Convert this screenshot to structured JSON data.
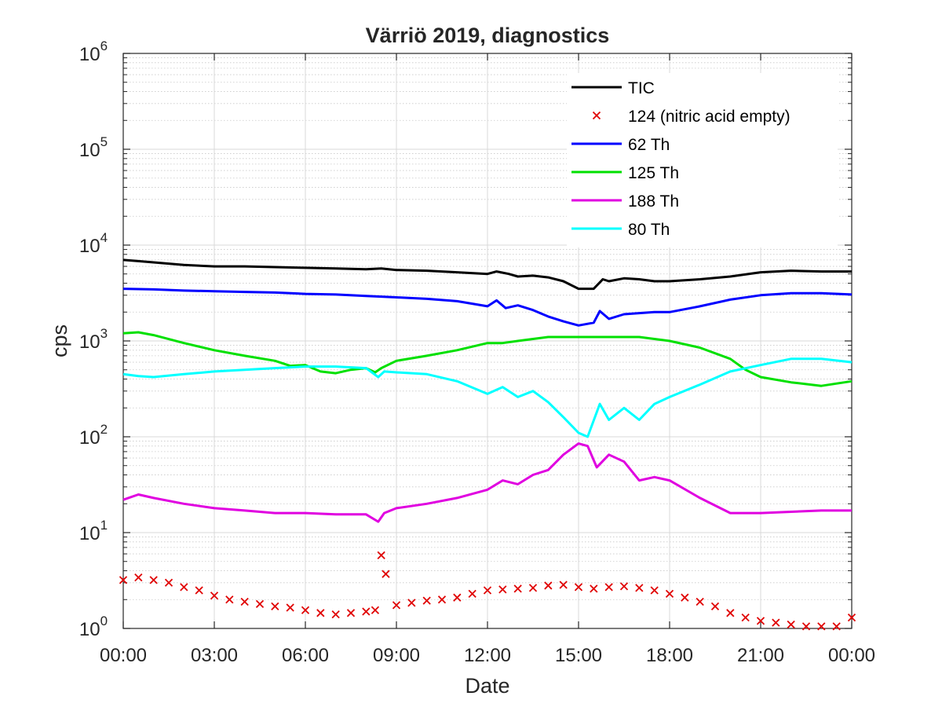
{
  "chart_data": {
    "type": "line",
    "title": "Värriö 2019, diagnostics",
    "xlabel": "Date",
    "ylabel": "cps",
    "x_ticks": [
      "00:00",
      "03:00",
      "06:00",
      "09:00",
      "12:00",
      "15:00",
      "18:00",
      "21:00",
      "00:00"
    ],
    "xlim_hours": [
      0,
      24
    ],
    "y_scale": "log",
    "ylim": [
      1,
      1000000
    ],
    "y_ticks": [
      {
        "base": "10",
        "exp": "0"
      },
      {
        "base": "10",
        "exp": "1"
      },
      {
        "base": "10",
        "exp": "2"
      },
      {
        "base": "10",
        "exp": "3"
      },
      {
        "base": "10",
        "exp": "4"
      },
      {
        "base": "10",
        "exp": "5"
      },
      {
        "base": "10",
        "exp": "6"
      }
    ],
    "grid": true,
    "minor_grid": true,
    "legend_position": "top-right",
    "series": [
      {
        "name": "TIC",
        "style": "line",
        "color": "#000000",
        "x": [
          0,
          0.5,
          1,
          1.5,
          2,
          3,
          4,
          5,
          6,
          7,
          8,
          8.5,
          9,
          10,
          11,
          12,
          12.3,
          12.7,
          13,
          13.5,
          14,
          14.5,
          15,
          15.5,
          15.8,
          16,
          16.5,
          17,
          17.5,
          18,
          19,
          20,
          21,
          22,
          23,
          24
        ],
        "y": [
          7000,
          6800,
          6600,
          6400,
          6200,
          6000,
          6000,
          5900,
          5800,
          5700,
          5600,
          5700,
          5500,
          5400,
          5200,
          5000,
          5300,
          5000,
          4700,
          4800,
          4600,
          4200,
          3500,
          3500,
          4400,
          4200,
          4500,
          4400,
          4200,
          4200,
          4400,
          4700,
          5200,
          5400,
          5300,
          5300
        ]
      },
      {
        "name": "124 (nitric acid empty)",
        "style": "marker",
        "color": "#e00000",
        "x": [
          0,
          0.5,
          1,
          1.5,
          2,
          2.5,
          3,
          3.5,
          4,
          4.5,
          5,
          5.5,
          6,
          6.5,
          7,
          7.5,
          8,
          8.3,
          8.5,
          8.65,
          9,
          9.5,
          10,
          10.5,
          11,
          11.5,
          12,
          12.5,
          13,
          13.5,
          14,
          14.5,
          15,
          15.5,
          16,
          16.5,
          17,
          17.5,
          18,
          18.5,
          19,
          19.5,
          20,
          20.5,
          21,
          21.5,
          22,
          22.5,
          23,
          23.5,
          24
        ],
        "y": [
          3.2,
          3.4,
          3.2,
          3.0,
          2.7,
          2.5,
          2.2,
          2.0,
          1.9,
          1.8,
          1.7,
          1.65,
          1.55,
          1.45,
          1.4,
          1.45,
          1.5,
          1.55,
          5.8,
          3.7,
          1.75,
          1.85,
          1.95,
          2.0,
          2.1,
          2.3,
          2.5,
          2.55,
          2.6,
          2.65,
          2.8,
          2.85,
          2.7,
          2.6,
          2.7,
          2.75,
          2.65,
          2.5,
          2.3,
          2.1,
          1.9,
          1.7,
          1.45,
          1.3,
          1.2,
          1.15,
          1.1,
          1.05,
          1.05,
          1.05,
          1.3
        ]
      },
      {
        "name": "62 Th",
        "style": "line",
        "color": "#0000ff",
        "x": [
          0,
          1,
          2,
          3,
          4,
          5,
          6,
          7,
          8,
          9,
          10,
          11,
          12,
          12.3,
          12.6,
          13,
          13.5,
          14,
          14.5,
          15,
          15.5,
          15.7,
          16,
          16.5,
          17,
          17.5,
          18,
          19,
          20,
          21,
          22,
          23,
          24
        ],
        "y": [
          3500,
          3450,
          3350,
          3300,
          3250,
          3200,
          3100,
          3050,
          2950,
          2850,
          2750,
          2600,
          2300,
          2650,
          2200,
          2350,
          2100,
          1800,
          1600,
          1450,
          1550,
          2050,
          1700,
          1900,
          1950,
          2000,
          2000,
          2300,
          2700,
          3000,
          3150,
          3150,
          3050
        ]
      },
      {
        "name": "125 Th",
        "style": "line",
        "color": "#00e000",
        "x": [
          0,
          0.5,
          1,
          2,
          3,
          4,
          5,
          5.5,
          6,
          6.5,
          7,
          7.5,
          8,
          8.3,
          8.5,
          9,
          10,
          11,
          12,
          12.5,
          13,
          14,
          15,
          16,
          17,
          18,
          19,
          20,
          20.5,
          21,
          22,
          23,
          24
        ],
        "y": [
          1200,
          1230,
          1150,
          950,
          800,
          700,
          620,
          550,
          560,
          480,
          460,
          500,
          520,
          470,
          520,
          620,
          700,
          800,
          950,
          950,
          1000,
          1100,
          1100,
          1100,
          1100,
          1000,
          850,
          650,
          500,
          420,
          370,
          340,
          380
        ]
      },
      {
        "name": "188 Th",
        "style": "line",
        "color": "#e000e0",
        "x": [
          0,
          0.5,
          1,
          2,
          3,
          4,
          5,
          6,
          7,
          8,
          8.4,
          8.6,
          9,
          10,
          11,
          12,
          12.5,
          13,
          13.5,
          14,
          14.5,
          15,
          15.3,
          15.6,
          16,
          16.5,
          17,
          17.5,
          18,
          19,
          20,
          21,
          22,
          23,
          24
        ],
        "y": [
          22,
          25,
          23,
          20,
          18,
          17,
          16,
          16,
          15.5,
          15.5,
          13,
          16,
          18,
          20,
          23,
          28,
          35,
          32,
          40,
          45,
          65,
          85,
          80,
          48,
          65,
          55,
          35,
          38,
          35,
          23,
          16,
          16,
          16.5,
          17,
          17
        ]
      },
      {
        "name": "80 Th",
        "style": "line",
        "color": "#00ffff",
        "x": [
          0,
          0.5,
          1,
          2,
          3,
          4,
          5,
          6,
          7,
          8,
          8.4,
          8.6,
          9,
          10,
          11,
          12,
          12.5,
          13,
          13.5,
          14,
          14.5,
          15,
          15.3,
          15.7,
          16,
          16.5,
          17,
          17.5,
          18,
          19,
          20,
          21,
          22,
          23,
          24
        ],
        "y": [
          450,
          430,
          420,
          450,
          480,
          500,
          520,
          540,
          540,
          520,
          420,
          480,
          470,
          450,
          380,
          280,
          330,
          260,
          300,
          230,
          160,
          110,
          100,
          220,
          150,
          200,
          150,
          220,
          260,
          350,
          480,
          560,
          650,
          650,
          600
        ]
      }
    ]
  }
}
